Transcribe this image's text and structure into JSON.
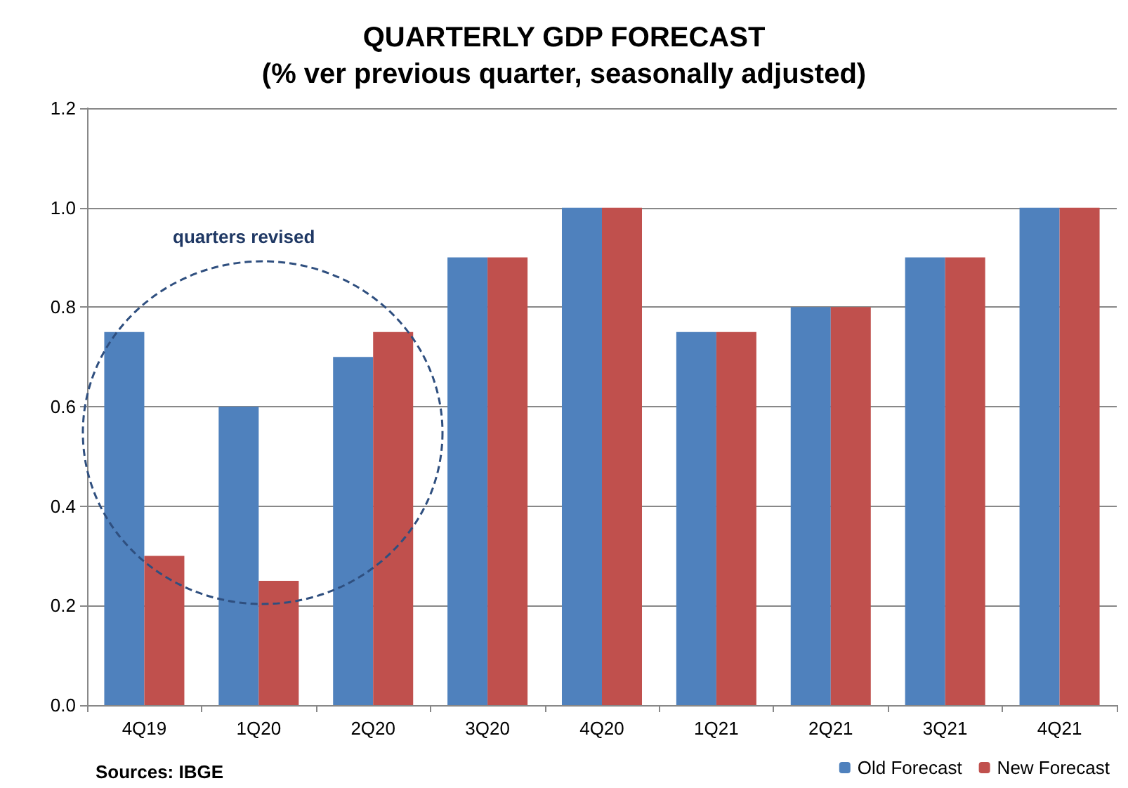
{
  "chart_data": {
    "type": "bar",
    "title": "QUARTERLY GDP FORECAST",
    "subtitle": "(% ver previous quarter, seasonally adjusted)",
    "categories": [
      "4Q19",
      "1Q20",
      "2Q20",
      "3Q20",
      "4Q20",
      "1Q21",
      "2Q21",
      "3Q21",
      "4Q21"
    ],
    "series": [
      {
        "name": "Old Forecast",
        "color": "#4f81bd",
        "values": [
          0.75,
          0.6,
          0.7,
          0.9,
          1.0,
          0.75,
          0.8,
          0.9,
          1.0
        ]
      },
      {
        "name": "New Forecast",
        "color": "#c0504d",
        "values": [
          0.3,
          0.25,
          0.75,
          0.9,
          1.0,
          0.75,
          0.8,
          0.9,
          1.0
        ]
      }
    ],
    "ylim": [
      0,
      1.2
    ],
    "yticks": [
      {
        "value": 0,
        "label": "0.0"
      },
      {
        "value": 0.2,
        "label": "0.2"
      },
      {
        "value": 0.4,
        "label": "0.4"
      },
      {
        "value": 0.6,
        "label": "0.6"
      },
      {
        "value": 0.8,
        "label": "0.8"
      },
      {
        "value": 1.0,
        "label": "1.0"
      },
      {
        "value": 1.2,
        "label": "1.2"
      }
    ],
    "grid": "y",
    "legend": "bottom right",
    "annotations": [
      "quarters revised",
      "Sources: IBGE"
    ]
  }
}
